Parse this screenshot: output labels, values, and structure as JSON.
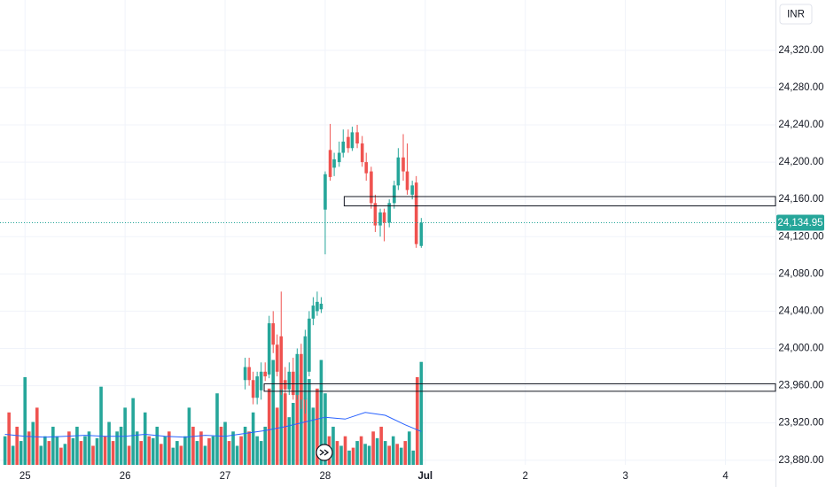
{
  "chart_data": {
    "type": "candlestick",
    "currency": "INR",
    "xlim": [
      -0.25,
      7.5
    ],
    "xticks": [
      {
        "value": 0,
        "label": "25"
      },
      {
        "value": 1,
        "label": "26"
      },
      {
        "value": 2,
        "label": "27"
      },
      {
        "value": 3,
        "label": "28"
      },
      {
        "value": 4,
        "label": "Jul"
      },
      {
        "value": 5,
        "label": "2"
      },
      {
        "value": 6,
        "label": "3"
      },
      {
        "value": 7,
        "label": "4"
      }
    ],
    "ylim": [
      23875,
      24374
    ],
    "yticks": [
      {
        "value": 23880,
        "label": "23,880.00"
      },
      {
        "value": 23920,
        "label": "23,920.00"
      },
      {
        "value": 23960,
        "label": "23,960.00"
      },
      {
        "value": 24000,
        "label": "24,000.00"
      },
      {
        "value": 24040,
        "label": "24,040.00"
      },
      {
        "value": 24080,
        "label": "24,080.00"
      },
      {
        "value": 24120,
        "label": "24,120.00"
      },
      {
        "value": 24160,
        "label": "24,160.00"
      },
      {
        "value": 24200,
        "label": "24,200.00"
      },
      {
        "value": 24240,
        "label": "24,240.00"
      },
      {
        "value": 24280,
        "label": "24,280.00"
      },
      {
        "value": 24320,
        "label": "24,320.00"
      }
    ],
    "grid": true,
    "up_color": "#26a69a",
    "down_color": "#ef5350",
    "x": [
      2.2,
      2.24,
      2.28,
      2.32,
      2.36,
      2.4,
      2.44,
      2.48,
      2.52,
      2.56,
      2.6,
      2.64,
      2.68,
      2.72,
      2.76,
      2.8,
      2.84,
      2.88,
      2.92,
      2.96,
      3.0,
      3.05,
      3.09,
      3.14,
      3.18,
      3.23,
      3.27,
      3.32,
      3.37,
      3.41,
      3.46,
      3.5,
      3.55,
      3.59,
      3.64,
      3.69,
      3.73,
      3.78,
      3.82,
      3.87,
      3.91,
      3.96
    ],
    "open": [
      23966,
      23980,
      23966,
      23947,
      23955,
      23975,
      23972,
      24027,
      24004,
      24013,
      23966,
      23956,
      23975,
      23950,
      23994,
      23945,
      23975,
      24032,
      24040,
      24042,
      24149,
      24213,
      24194,
      24200,
      24210,
      24227,
      24215,
      24232,
      24220,
      24200,
      24190,
      24156,
      24132,
      24146,
      24135,
      24156,
      24175,
      24205,
      24190,
      24165,
      24178,
      24110
    ],
    "high": [
      23990,
      23990,
      23975,
      23975,
      23985,
      23985,
      24035,
      24040,
      24015,
      24061,
      23980,
      23985,
      23990,
      24000,
      24005,
      24020,
      24040,
      24055,
      24061,
      24055,
      24190,
      24241,
      24210,
      24222,
      24235,
      24235,
      24238,
      24240,
      24228,
      24210,
      24195,
      24165,
      24150,
      24150,
      24160,
      24180,
      24215,
      24230,
      24220,
      24180,
      24185,
      24140
    ],
    "low": [
      23956,
      23960,
      23940,
      23940,
      23945,
      23965,
      23968,
      23995,
      23970,
      23950,
      23950,
      23950,
      23945,
      23945,
      23935,
      23930,
      23970,
      24025,
      24035,
      24038,
      24101,
      24180,
      24185,
      24195,
      24205,
      24210,
      24212,
      24215,
      24195,
      24180,
      24150,
      24125,
      24120,
      24115,
      24130,
      24150,
      24170,
      24180,
      24165,
      24160,
      24108,
      24108
    ],
    "close": [
      23980,
      23966,
      23947,
      23970,
      23975,
      23970,
      24027,
      24004,
      23975,
      23956,
      23956,
      23975,
      23950,
      23994,
      23945,
      24013,
      24032,
      24046,
      24050,
      24048,
      24187,
      24184,
      24203,
      24210,
      24222,
      24215,
      24232,
      24220,
      24200,
      24188,
      24156,
      24132,
      24146,
      24135,
      24156,
      24175,
      24205,
      24190,
      24170,
      24175,
      24112,
      24134.95
    ],
    "last_price": {
      "value": 24134.95,
      "label": "24,134.95",
      "color": "#26a69a"
    },
    "zones": [
      {
        "start": 3.19,
        "from": 24153,
        "to": 24163
      },
      {
        "start": 2.39,
        "from": 23954,
        "to": 23962
      }
    ],
    "volume": {
      "vlim": [
        0,
        130
      ],
      "x": [
        -0.2,
        -0.16,
        -0.12,
        -0.08,
        -0.04,
        0,
        0.04,
        0.08,
        0.12,
        0.16,
        0.2,
        0.24,
        0.28,
        0.32,
        0.36,
        0.4,
        0.44,
        0.48,
        0.52,
        0.56,
        0.6,
        0.64,
        0.68,
        0.72,
        0.76,
        0.8,
        0.84,
        0.88,
        0.92,
        0.96,
        1,
        1.04,
        1.08,
        1.12,
        1.16,
        1.2,
        1.24,
        1.28,
        1.32,
        1.36,
        1.4,
        1.44,
        1.48,
        1.52,
        1.56,
        1.6,
        1.64,
        1.68,
        1.72,
        1.76,
        1.8,
        1.84,
        1.88,
        1.92,
        1.96,
        2,
        2.04,
        2.08,
        2.12,
        2.16,
        2.2,
        2.24,
        2.28,
        2.32,
        2.36,
        2.4,
        2.44,
        2.48,
        2.52,
        2.56,
        2.6,
        2.64,
        2.68,
        2.72,
        2.76,
        2.8,
        2.84,
        2.88,
        2.92,
        2.96,
        3,
        3.04,
        3.08,
        3.12,
        3.16,
        3.2,
        3.24,
        3.28,
        3.32,
        3.36,
        3.4,
        3.44,
        3.48,
        3.52,
        3.56,
        3.6,
        3.64,
        3.68,
        3.72,
        3.76,
        3.8,
        3.84,
        3.88,
        3.92,
        3.96
      ],
      "values": [
        30,
        55,
        20,
        40,
        25,
        92,
        35,
        45,
        60,
        20,
        30,
        25,
        40,
        30,
        18,
        22,
        35,
        28,
        40,
        25,
        30,
        35,
        20,
        28,
        82,
        30,
        45,
        25,
        35,
        40,
        60,
        20,
        70,
        35,
        25,
        55,
        30,
        28,
        40,
        22,
        30,
        35,
        18,
        25,
        20,
        30,
        60,
        40,
        25,
        35,
        20,
        28,
        30,
        75,
        40,
        45,
        25,
        35,
        20,
        30,
        40,
        35,
        55,
        30,
        25,
        40,
        80,
        110,
        60,
        100,
        75,
        50,
        65,
        95,
        85,
        70,
        90,
        60,
        80,
        110,
        75,
        30,
        40,
        25,
        20,
        30,
        15,
        18,
        25,
        30,
        22,
        20,
        35,
        28,
        40,
        25,
        20,
        30,
        22,
        18,
        25,
        35,
        15,
        92,
        108
      ],
      "up": [
        true,
        false,
        true,
        false,
        true,
        true,
        false,
        true,
        false,
        true,
        true,
        false,
        true,
        true,
        false,
        true,
        false,
        true,
        true,
        false,
        true,
        true,
        false,
        true,
        true,
        false,
        true,
        false,
        true,
        true,
        true,
        false,
        true,
        true,
        false,
        true,
        false,
        true,
        true,
        false,
        true,
        false,
        true,
        true,
        false,
        true,
        true,
        false,
        true,
        false,
        true,
        false,
        true,
        true,
        false,
        true,
        false,
        true,
        true,
        false,
        true,
        false,
        true,
        true,
        true,
        true,
        false,
        true,
        false,
        true,
        false,
        true,
        true,
        false,
        true,
        false,
        true,
        true,
        false,
        true,
        true,
        false,
        true,
        false,
        true,
        false,
        true,
        false,
        true,
        false,
        true,
        true,
        false,
        true,
        false,
        true,
        false,
        true,
        false,
        true,
        false,
        true,
        true,
        false,
        true
      ],
      "ma_color": "#2962ff",
      "ma_x": [
        -0.2,
        0,
        0.2,
        0.4,
        0.6,
        0.8,
        1,
        1.2,
        1.4,
        1.6,
        1.8,
        2,
        2.2,
        2.4,
        2.6,
        2.8,
        3,
        3.2,
        3.4,
        3.6,
        3.8,
        3.96
      ],
      "ma_values": [
        32,
        30,
        29,
        30,
        31,
        30,
        30,
        32,
        30,
        29,
        31,
        30,
        33,
        36,
        40,
        45,
        50,
        48,
        55,
        52,
        42,
        35
      ]
    }
  }
}
